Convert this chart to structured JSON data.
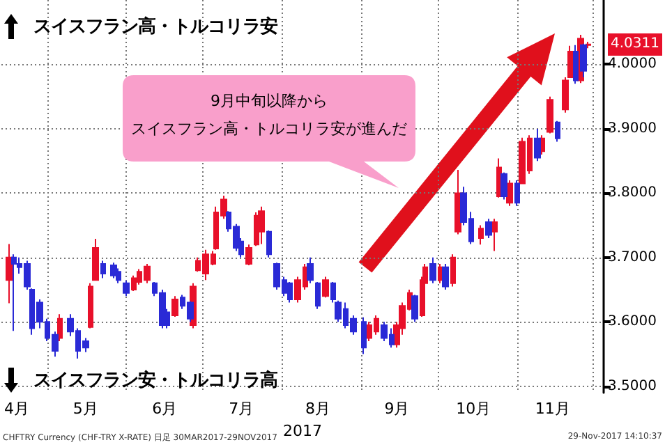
{
  "chart_data": {
    "type": "candlestick",
    "xlabel": "2017",
    "xlim": [
      "2017-04-13",
      "2017-12-05"
    ],
    "xticks": [
      {
        "value": "2017-05-01",
        "label": null
      },
      {
        "value": "2017-06-01",
        "label": null
      },
      {
        "value": "2017-07-01",
        "label": null
      },
      {
        "value": "2017-08-01",
        "label": null
      },
      {
        "value": "2017-09-01",
        "label": null
      },
      {
        "value": "2017-10-01",
        "label": null
      },
      {
        "value": "2017-11-01",
        "label": null
      },
      {
        "value": "2017-12-01",
        "label": null
      },
      {
        "value": "2017-04-19",
        "label": "4月"
      },
      {
        "value": "2017-05-16",
        "label": "5月"
      },
      {
        "value": "2017-06-16",
        "label": "6月"
      },
      {
        "value": "2017-07-16",
        "label": "7月"
      },
      {
        "value": "2017-08-15",
        "label": "8月"
      },
      {
        "value": "2017-09-15",
        "label": "9月"
      },
      {
        "value": "2017-10-15",
        "label": "10月"
      },
      {
        "value": "2017-11-15",
        "label": "11月"
      }
    ],
    "ylim": [
      3.49,
      4.1
    ],
    "yticks": [
      {
        "value": 3.5,
        "label": "3.5000"
      },
      {
        "value": 3.6,
        "label": "3.6000"
      },
      {
        "value": 3.7,
        "label": "3.7000"
      },
      {
        "value": 3.8,
        "label": "3.8000"
      },
      {
        "value": 3.9,
        "label": "3.9000"
      },
      {
        "value": 4.0,
        "label": "4.0000"
      }
    ],
    "grid": true,
    "annotations": [
      "スイスフラン高・トルコリラ安",
      "スイスフラン安・トルコリラ高",
      "9月中旬以降から",
      "スイスフラン高・トルコリラ安が進んだ",
      {
        "text": "4.0311",
        "x": "2017-11-29",
        "y": 4.0311
      },
      "CHFTRY Currency (CHF-TRY X-RATE) 日足 30MAR2017-29NOV2017",
      "29-Nov-2017 14:10:37"
    ],
    "series": [
      {
        "color": "#e8102a",
        "x": [
          "2017-04-16",
          "2017-05-06",
          "2017-05-18",
          "2017-05-20",
          "2017-06-04",
          "2017-06-06",
          "2017-06-09",
          "2017-06-20",
          "2017-06-27",
          "2017-06-29",
          "2017-07-02",
          "2017-07-05",
          "2017-07-06",
          "2017-07-09",
          "2017-07-19",
          "2017-07-22",
          "2017-07-24",
          "2017-08-07",
          "2017-08-10",
          "2017-08-18",
          "2017-09-04",
          "2017-09-07",
          "2017-09-15",
          "2017-09-17",
          "2017-09-20",
          "2017-09-25",
          "2017-09-26",
          "2017-10-02",
          "2017-10-07",
          "2017-10-09",
          "2017-10-18",
          "2017-10-23",
          "2017-10-25",
          "2017-10-29",
          "2017-11-03",
          "2017-11-06",
          "2017-11-11",
          "2017-11-14",
          "2017-11-20",
          "2017-11-22",
          "2017-11-26",
          "2017-11-29"
        ],
        "ohlc": [
          [
            3.665,
            3.721,
            3.629,
            3.7
          ],
          [
            3.575,
            3.612,
            3.57,
            3.605
          ],
          [
            3.592,
            3.66,
            3.59,
            3.655
          ],
          [
            3.665,
            3.729,
            3.664,
            3.715
          ],
          [
            3.65,
            3.672,
            3.648,
            3.668
          ],
          [
            3.662,
            3.682,
            3.658,
            3.678
          ],
          [
            3.665,
            3.69,
            3.66,
            3.686
          ],
          [
            3.61,
            3.64,
            3.608,
            3.635
          ],
          [
            3.595,
            3.66,
            3.59,
            3.655
          ],
          [
            3.68,
            3.7,
            3.678,
            3.695
          ],
          [
            3.675,
            3.712,
            3.665,
            3.705
          ],
          [
            3.69,
            3.71,
            3.688,
            3.705
          ],
          [
            3.714,
            3.779,
            3.712,
            3.77
          ],
          [
            3.765,
            3.796,
            3.76,
            3.79
          ],
          [
            3.69,
            3.72,
            3.688,
            3.715
          ],
          [
            3.72,
            3.77,
            3.718,
            3.765
          ],
          [
            3.74,
            3.779,
            3.721,
            3.772
          ],
          [
            3.635,
            3.67,
            3.63,
            3.665
          ],
          [
            3.655,
            3.69,
            3.65,
            3.685
          ],
          [
            3.64,
            3.67,
            3.638,
            3.665
          ],
          [
            3.575,
            3.6,
            3.57,
            3.595
          ],
          [
            3.585,
            3.61,
            3.58,
            3.605
          ],
          [
            3.565,
            3.6,
            3.56,
            3.595
          ],
          [
            3.59,
            3.63,
            3.58,
            3.625
          ],
          [
            3.62,
            3.65,
            3.618,
            3.645
          ],
          [
            3.61,
            3.67,
            3.608,
            3.665
          ],
          [
            3.66,
            3.69,
            3.65,
            3.685
          ],
          [
            3.665,
            3.69,
            3.66,
            3.685
          ],
          [
            3.66,
            3.705,
            3.655,
            3.7
          ],
          [
            3.74,
            3.836,
            3.736,
            3.8
          ],
          [
            3.73,
            3.75,
            3.72,
            3.745
          ],
          [
            3.74,
            3.76,
            3.71,
            3.755
          ],
          [
            3.795,
            3.854,
            3.793,
            3.84
          ],
          [
            3.785,
            3.82,
            3.78,
            3.815
          ],
          [
            3.815,
            3.886,
            3.814,
            3.88
          ],
          [
            3.835,
            3.89,
            3.83,
            3.885
          ],
          [
            3.865,
            3.89,
            3.86,
            3.885
          ],
          [
            3.895,
            3.95,
            3.893,
            3.945
          ],
          [
            3.93,
            3.98,
            3.925,
            3.975
          ],
          [
            3.98,
            4.029,
            3.979,
            4.02
          ],
          [
            3.975,
            4.046,
            3.971,
            4.04
          ],
          [
            4.03,
            4.035,
            4.025,
            4.031
          ]
        ]
      },
      {
        "color": "#2a2ad6",
        "x": [
          "2017-04-18",
          "2017-04-20",
          "2017-04-23",
          "2017-04-25",
          "2017-04-28",
          "2017-05-01",
          "2017-05-04",
          "2017-05-10",
          "2017-05-13",
          "2017-05-16",
          "2017-05-23",
          "2017-05-27",
          "2017-05-29",
          "2017-06-01",
          "2017-06-12",
          "2017-06-15",
          "2017-06-17",
          "2017-06-23",
          "2017-06-26",
          "2017-07-11",
          "2017-07-14",
          "2017-07-16",
          "2017-07-27",
          "2017-07-30",
          "2017-08-02",
          "2017-08-04",
          "2017-08-12",
          "2017-08-15",
          "2017-08-21",
          "2017-08-23",
          "2017-08-26",
          "2017-08-29",
          "2017-09-02",
          "2017-09-10",
          "2017-09-13",
          "2017-09-22",
          "2017-09-29",
          "2017-10-04",
          "2017-10-11",
          "2017-10-14",
          "2017-10-21",
          "2017-10-27",
          "2017-11-01",
          "2017-11-09",
          "2017-11-17",
          "2017-11-24",
          "2017-11-27"
        ],
        "ohlc": [
          [
            3.7,
            3.705,
            3.586,
            3.69
          ],
          [
            3.69,
            3.7,
            3.675,
            3.685
          ],
          [
            3.69,
            3.695,
            3.65,
            3.655
          ],
          [
            3.65,
            3.652,
            3.58,
            3.59
          ],
          [
            3.63,
            3.635,
            3.59,
            3.6
          ],
          [
            3.6,
            3.605,
            3.57,
            3.575
          ],
          [
            3.58,
            3.585,
            3.546,
            3.555
          ],
          [
            3.605,
            3.612,
            3.578,
            3.585
          ],
          [
            3.586,
            3.59,
            3.543,
            3.555
          ],
          [
            3.57,
            3.575,
            3.553,
            3.56
          ],
          [
            3.69,
            3.695,
            3.668,
            3.675
          ],
          [
            3.688,
            3.692,
            3.668,
            3.672
          ],
          [
            3.678,
            3.683,
            3.66,
            3.665
          ],
          [
            3.66,
            3.664,
            3.64,
            3.645
          ],
          [
            3.66,
            3.662,
            3.64,
            3.645
          ],
          [
            3.645,
            3.65,
            3.59,
            3.595
          ],
          [
            3.615,
            3.62,
            3.59,
            3.595
          ],
          [
            3.638,
            3.642,
            3.62,
            3.625
          ],
          [
            3.63,
            3.632,
            3.6,
            3.605
          ],
          [
            3.77,
            3.772,
            3.74,
            3.745
          ],
          [
            3.748,
            3.752,
            3.71,
            3.715
          ],
          [
            3.725,
            3.73,
            3.7,
            3.705
          ],
          [
            3.74,
            3.742,
            3.7,
            3.705
          ],
          [
            3.69,
            3.692,
            3.65,
            3.655
          ],
          [
            3.665,
            3.67,
            3.64,
            3.645
          ],
          [
            3.66,
            3.662,
            3.63,
            3.635
          ],
          [
            3.69,
            3.7,
            3.66,
            3.665
          ],
          [
            3.66,
            3.662,
            3.62,
            3.625
          ],
          [
            3.66,
            3.662,
            3.63,
            3.635
          ],
          [
            3.63,
            3.633,
            3.6,
            3.605
          ],
          [
            3.62,
            3.63,
            3.59,
            3.595
          ],
          [
            3.605,
            3.61,
            3.58,
            3.585
          ],
          [
            3.6,
            3.607,
            3.55,
            3.56
          ],
          [
            3.595,
            3.6,
            3.57,
            3.575
          ],
          [
            3.58,
            3.59,
            3.56,
            3.565
          ],
          [
            3.64,
            3.642,
            3.6,
            3.605
          ],
          [
            3.69,
            3.7,
            3.66,
            3.665
          ],
          [
            3.685,
            3.69,
            3.65,
            3.655
          ],
          [
            3.8,
            3.81,
            3.75,
            3.755
          ],
          [
            3.76,
            3.771,
            3.721,
            3.725
          ],
          [
            3.755,
            3.76,
            3.73,
            3.735
          ],
          [
            3.83,
            3.832,
            3.79,
            3.795
          ],
          [
            3.815,
            3.82,
            3.78,
            3.785
          ],
          [
            3.885,
            3.9,
            3.85,
            3.855
          ],
          [
            3.91,
            3.912,
            3.88,
            3.885
          ],
          [
            4.02,
            4.03,
            3.97,
            3.975
          ],
          [
            4.03,
            4.032,
            3.98,
            3.99
          ]
        ]
      }
    ]
  }
}
